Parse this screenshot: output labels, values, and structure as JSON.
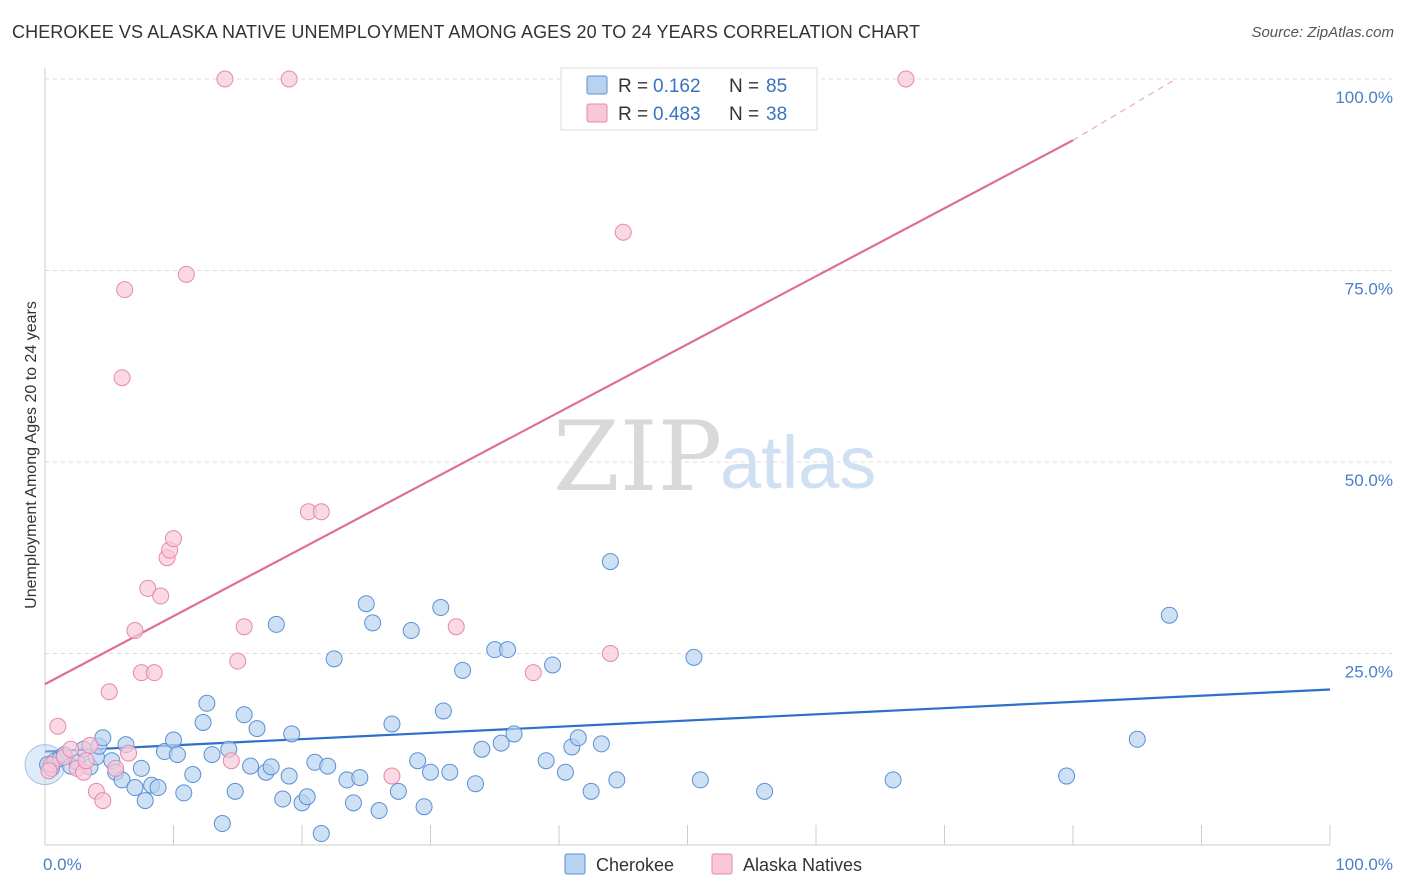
{
  "title": "CHEROKEE VS ALASKA NATIVE UNEMPLOYMENT AMONG AGES 20 TO 24 YEARS CORRELATION CHART",
  "source": "Source: ZipAtlas.com",
  "watermark": {
    "zip": "ZIP",
    "atlas": "atlas"
  },
  "colors": {
    "cherokee_fill": "#b8d3f0",
    "cherokee_stroke": "#5b8fd6",
    "cherokee_line": "#2f6fcc",
    "alaska_fill": "#f8c8d8",
    "alaska_stroke": "#e68aaa",
    "alaska_line": "#e06d98",
    "grid": "#dddddd",
    "axis_text": "#4a7fc9"
  },
  "legend": {
    "rows": [
      {
        "r_label": "R =",
        "r_value": "0.162",
        "n_label": "N =",
        "n_value": "85"
      },
      {
        "r_label": "R =",
        "r_value": "0.483",
        "n_label": "N =",
        "n_value": "38"
      }
    ]
  },
  "chart_data": {
    "type": "scatter",
    "title": "CHEROKEE VS ALASKA NATIVE UNEMPLOYMENT AMONG AGES 20 TO 24 YEARS CORRELATION CHART",
    "xlabel": "",
    "ylabel": "Unemployment Among Ages 20 to 24 years",
    "xlim": [
      0,
      100
    ],
    "ylim": [
      0,
      100
    ],
    "x_tick_labels": [
      "0.0%",
      "100.0%"
    ],
    "y_tick_labels": [
      "25.0%",
      "50.0%",
      "75.0%",
      "100.0%"
    ],
    "y_ticks": [
      25,
      50,
      75,
      100
    ],
    "legend_position": "top-center",
    "series": [
      {
        "name": "Cherokee",
        "r": 0.162,
        "n": 85,
        "trend": {
          "x0": 0,
          "y0": 12.2,
          "x1": 100,
          "y1": 20.3
        },
        "points": [
          [
            0.2,
            10.5
          ],
          [
            0.5,
            10.0
          ],
          [
            0.8,
            11.0
          ],
          [
            1.2,
            11.3
          ],
          [
            1.5,
            11.8
          ],
          [
            2.0,
            10.3
          ],
          [
            2.5,
            10.8
          ],
          [
            3.0,
            12.5
          ],
          [
            3.5,
            10.2
          ],
          [
            4.0,
            11.5
          ],
          [
            4.2,
            12.9
          ],
          [
            4.5,
            14.0
          ],
          [
            5.2,
            11.0
          ],
          [
            5.5,
            9.5
          ],
          [
            6.0,
            8.5
          ],
          [
            6.3,
            13.1
          ],
          [
            7.0,
            7.5
          ],
          [
            7.5,
            10.0
          ],
          [
            7.8,
            5.8
          ],
          [
            8.3,
            7.8
          ],
          [
            8.8,
            7.5
          ],
          [
            9.3,
            12.2
          ],
          [
            10.0,
            13.7
          ],
          [
            10.3,
            11.8
          ],
          [
            10.8,
            6.8
          ],
          [
            11.5,
            9.2
          ],
          [
            12.3,
            16.0
          ],
          [
            12.6,
            18.5
          ],
          [
            13.0,
            11.8
          ],
          [
            13.8,
            2.8
          ],
          [
            14.3,
            12.5
          ],
          [
            14.8,
            7.0
          ],
          [
            15.5,
            17.0
          ],
          [
            16.0,
            10.3
          ],
          [
            16.5,
            15.2
          ],
          [
            17.2,
            9.5
          ],
          [
            17.6,
            10.2
          ],
          [
            18.0,
            28.8
          ],
          [
            18.5,
            6.0
          ],
          [
            19.0,
            9.0
          ],
          [
            19.2,
            14.5
          ],
          [
            20.0,
            5.5
          ],
          [
            20.4,
            6.3
          ],
          [
            21.0,
            10.8
          ],
          [
            21.5,
            1.5
          ],
          [
            22.0,
            10.3
          ],
          [
            22.5,
            24.3
          ],
          [
            23.5,
            8.5
          ],
          [
            24.0,
            5.5
          ],
          [
            24.5,
            8.8
          ],
          [
            25.0,
            31.5
          ],
          [
            25.5,
            29.0
          ],
          [
            26.0,
            4.5
          ],
          [
            27.0,
            15.8
          ],
          [
            27.5,
            7.0
          ],
          [
            28.5,
            28.0
          ],
          [
            29.0,
            11.0
          ],
          [
            29.5,
            5.0
          ],
          [
            30.0,
            9.5
          ],
          [
            30.8,
            31.0
          ],
          [
            31.0,
            17.5
          ],
          [
            31.5,
            9.5
          ],
          [
            32.5,
            22.8
          ],
          [
            33.5,
            8.0
          ],
          [
            34.0,
            12.5
          ],
          [
            35.0,
            25.5
          ],
          [
            35.5,
            13.3
          ],
          [
            36.0,
            25.5
          ],
          [
            36.5,
            14.5
          ],
          [
            39.0,
            11.0
          ],
          [
            39.5,
            23.5
          ],
          [
            40.5,
            9.5
          ],
          [
            41.0,
            12.8
          ],
          [
            41.5,
            14.0
          ],
          [
            42.5,
            7.0
          ],
          [
            43.3,
            13.2
          ],
          [
            44.0,
            37.0
          ],
          [
            44.5,
            8.5
          ],
          [
            50.5,
            24.5
          ],
          [
            51.0,
            8.5
          ],
          [
            56.0,
            7.0
          ],
          [
            66.0,
            8.5
          ],
          [
            79.5,
            9.0
          ],
          [
            85.0,
            13.8
          ],
          [
            87.5,
            30.0
          ]
        ]
      },
      {
        "name": "Alaska Natives",
        "r": 0.483,
        "n": 38,
        "trend": {
          "x0": 0,
          "y0": 21.0,
          "x1": 80,
          "y1": 92.0
        },
        "trend_dashed_extension": {
          "x0": 80,
          "y0": 92.0,
          "x1": 88,
          "y1": 100.0
        },
        "points": [
          [
            0.5,
            10.5
          ],
          [
            1.0,
            15.5
          ],
          [
            1.5,
            11.5
          ],
          [
            2.0,
            12.5
          ],
          [
            2.5,
            10.0
          ],
          [
            3.0,
            9.5
          ],
          [
            3.5,
            13.0
          ],
          [
            4.0,
            7.0
          ],
          [
            4.5,
            5.8
          ],
          [
            5.0,
            20.0
          ],
          [
            5.5,
            10.0
          ],
          [
            6.0,
            61.0
          ],
          [
            6.2,
            72.5
          ],
          [
            6.5,
            12.0
          ],
          [
            7.0,
            28.0
          ],
          [
            7.5,
            22.5
          ],
          [
            8.0,
            33.5
          ],
          [
            8.5,
            22.5
          ],
          [
            9.0,
            32.5
          ],
          [
            9.5,
            37.5
          ],
          [
            9.7,
            38.5
          ],
          [
            10.0,
            40.0
          ],
          [
            11.0,
            74.5
          ],
          [
            14.0,
            100.0
          ],
          [
            14.5,
            11.0
          ],
          [
            15.0,
            24.0
          ],
          [
            15.5,
            28.5
          ],
          [
            19.0,
            100.0
          ],
          [
            20.5,
            43.5
          ],
          [
            21.5,
            43.5
          ],
          [
            27.0,
            9.0
          ],
          [
            32.0,
            28.5
          ],
          [
            38.0,
            22.5
          ],
          [
            44.0,
            25.0
          ],
          [
            45.0,
            80.0
          ],
          [
            67.0,
            100.0
          ],
          [
            0.3,
            9.7
          ],
          [
            3.2,
            11.0
          ]
        ]
      }
    ]
  },
  "bottom_legend": {
    "items": [
      "Cherokee",
      "Alaska Natives"
    ]
  }
}
